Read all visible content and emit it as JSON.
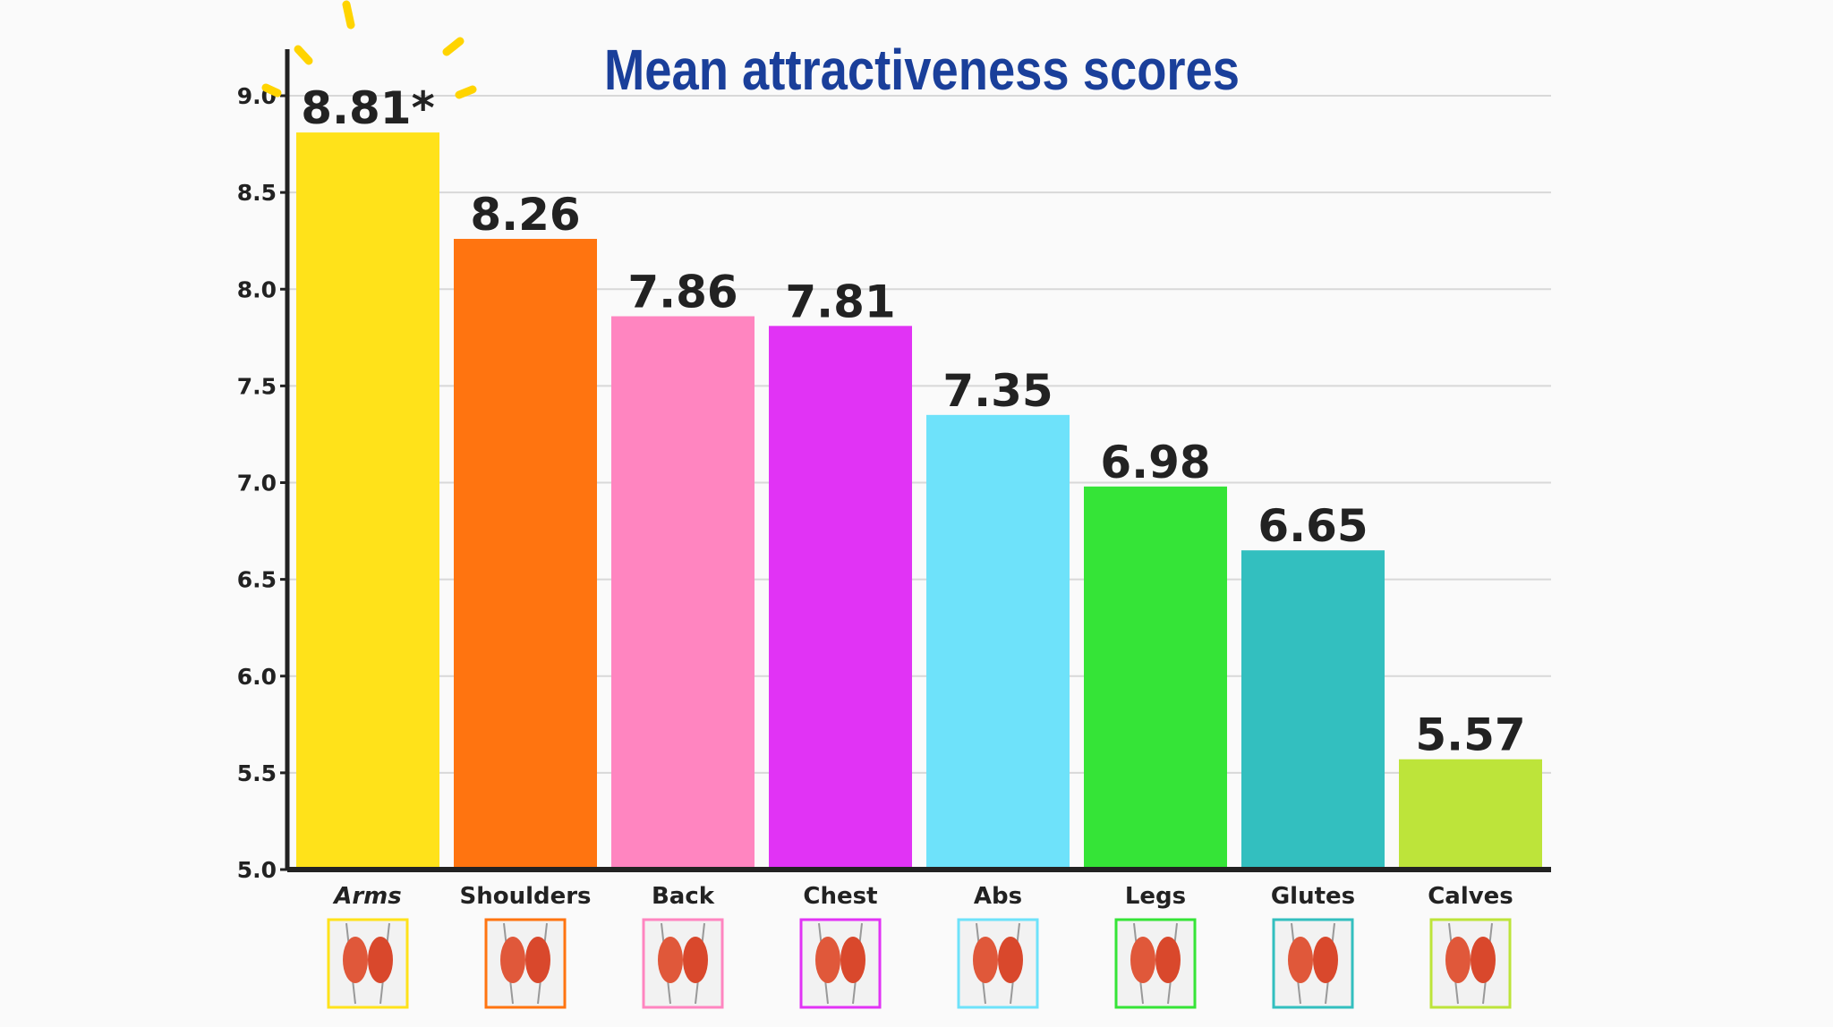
{
  "chart_data": {
    "type": "bar",
    "title": "Mean attractiveness scores",
    "xlabel": "",
    "ylabel": "",
    "ylim": [
      5.0,
      9.0
    ],
    "yticks": [
      "5.0",
      "5.5",
      "6.0",
      "6.5",
      "7.0",
      "7.5",
      "8.0",
      "8.5",
      "9.0"
    ],
    "grid": true,
    "categories": [
      "Arms",
      "Shoulders",
      "Back",
      "Chest",
      "Abs",
      "Legs",
      "Glutes",
      "Calves"
    ],
    "values": [
      8.81,
      8.26,
      7.86,
      7.81,
      7.35,
      6.98,
      6.65,
      5.57
    ],
    "data_labels": [
      "8.81*",
      "8.26",
      "7.86",
      "7.81",
      "7.35",
      "6.98",
      "6.65",
      "5.57"
    ],
    "colors": [
      "#ffe21a",
      "#ff7410",
      "#ff85c0",
      "#e133f5",
      "#6ee2fa",
      "#35e437",
      "#33bfbf",
      "#bde43a"
    ],
    "icons": [
      "arms-muscle-icon",
      "shoulders-muscle-icon",
      "back-muscle-icon",
      "chest-muscle-icon",
      "abs-muscle-icon",
      "legs-muscle-icon",
      "glutes-muscle-icon",
      "calves-muscle-icon"
    ]
  }
}
